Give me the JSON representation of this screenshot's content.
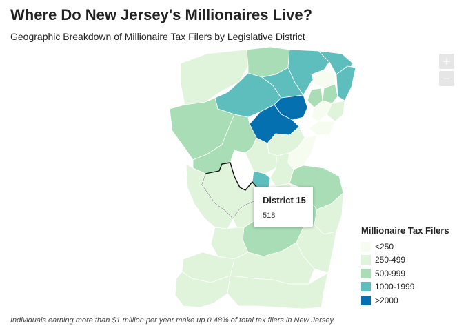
{
  "title": "Where Do New Jersey's Millionaires Live?",
  "subtitle": "Geographic Breakdown of Millionaire Tax Filers by Legislative District",
  "zoom": {
    "in_label": "+",
    "out_label": "−"
  },
  "tooltip": {
    "district": "District 15",
    "value": "518"
  },
  "legend": {
    "title": "Millionaire Tax Filers",
    "items": [
      {
        "label": "<250",
        "color": "#f7fcf0"
      },
      {
        "label": "250-499",
        "color": "#e0f3db"
      },
      {
        "label": "500-999",
        "color": "#a8ddb5"
      },
      {
        "label": "1000-1999",
        "color": "#5ebebe"
      },
      {
        "label": ">2000",
        "color": "#0570b0"
      }
    ]
  },
  "footnote": "Individuals earning more than $1 million per year make up 0.48% of total tax filers in New Jersey."
}
